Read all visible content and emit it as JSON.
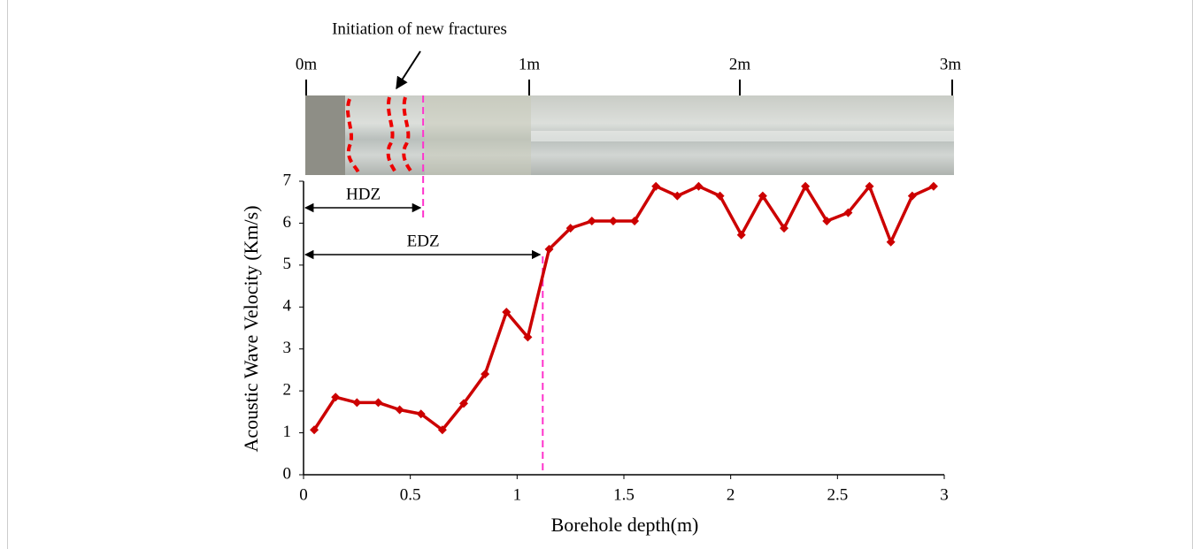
{
  "chart_data": {
    "type": "line",
    "annotation": "Initiation of new fractures",
    "image_scale": [
      "0m",
      "1m",
      "2m",
      "3m"
    ],
    "x_label": "Borehole depth(m)",
    "y_label": "Acoustic Wave Velocity (Km/s)",
    "x": [
      0.05,
      0.15,
      0.25,
      0.35,
      0.45,
      0.55,
      0.65,
      0.75,
      0.85,
      0.95,
      1.05,
      1.15,
      1.25,
      1.35,
      1.45,
      1.55,
      1.65,
      1.75,
      1.85,
      1.95,
      2.05,
      2.15,
      2.25,
      2.35,
      2.45,
      2.55,
      2.65,
      2.75,
      2.85,
      2.95
    ],
    "values": [
      1.07,
      1.85,
      1.72,
      1.72,
      1.55,
      1.45,
      1.07,
      1.7,
      2.4,
      3.88,
      3.28,
      5.38,
      5.88,
      6.05,
      6.05,
      6.05,
      6.88,
      6.65,
      6.88,
      6.65,
      5.72,
      6.65,
      5.88,
      6.88,
      6.05,
      6.25,
      6.88,
      5.55,
      6.65,
      6.88
    ],
    "color": "#cc0000",
    "zones": [
      {
        "label": "HDZ",
        "end": 0.56
      },
      {
        "label": "EDZ",
        "end": 1.12
      }
    ],
    "zone_color": "#ff33cc",
    "xlim": [
      0,
      3
    ],
    "ylim": [
      0,
      7
    ],
    "xticks": [
      0,
      0.5,
      1,
      1.5,
      2,
      2.5,
      3
    ],
    "yticks": [
      0,
      1,
      2,
      3,
      4,
      5,
      6,
      7
    ]
  }
}
